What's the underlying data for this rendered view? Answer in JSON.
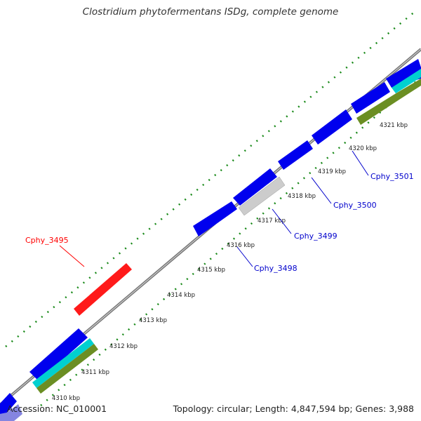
{
  "title": "Clostridium phytofermentans ISDg, complete genome",
  "footer": {
    "accession": "Accession: NC_010001",
    "topology": "Topology: circular; Length: 4,847,594 bp; Genes: 3,988"
  },
  "ticks": [
    "4310 kbp",
    "4311 kbp",
    "4312 kbp",
    "4313 kbp",
    "4314 kbp",
    "4315 kbp",
    "4316 kbp",
    "4317 kbp",
    "4318 kbp",
    "4319 kbp",
    "4320 kbp",
    "4321 kbp"
  ],
  "genes": [
    {
      "label": "Cphy_3495",
      "color": "#ff0000"
    },
    {
      "label": "Cphy_3498",
      "color": "#0000cc"
    },
    {
      "label": "Cphy_3499",
      "color": "#0000cc"
    },
    {
      "label": "Cphy_3500",
      "color": "#0000cc"
    },
    {
      "label": "Cphy_3501",
      "color": "#0000cc"
    }
  ],
  "colors": {
    "cds": "#0000ff",
    "rna": "#cccccc",
    "cyan_track": "#00d0d0",
    "olive_track": "#6b8e23",
    "dotted_track": "#1a8a1a",
    "backbone": "#888888"
  }
}
